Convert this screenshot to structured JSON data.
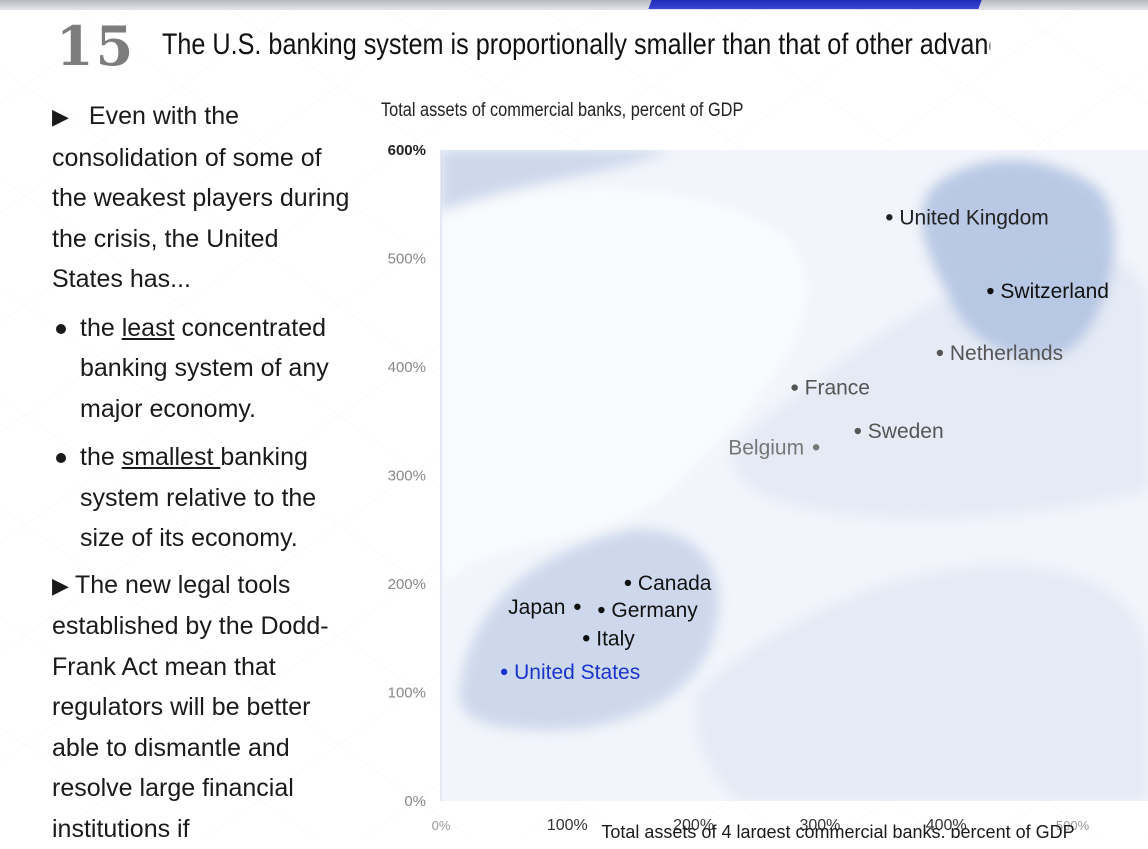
{
  "slide": {
    "number": "15",
    "title": "The U.S. banking system is proportionally smaller than that of other advanced eco"
  },
  "left_panel": {
    "intro": "Even with the consolidation of some of the weakest players during the crisis, the United States has...",
    "bullet1": {
      "prefix": "the ",
      "emph": "least",
      "suffix": " concentrated banking system of any major economy."
    },
    "bullet2": {
      "prefix": "the ",
      "emph": "smallest ",
      "suffix": "banking system relative to the size of its economy."
    },
    "para2": "The new legal tools established by the Dodd-Frank Act mean that regulators will be better able to dismantle and resolve large financial institutions if"
  },
  "chart_data": {
    "type": "scatter",
    "title": "Total assets of commercial banks, percent of GDP",
    "xlabel": "Total assets of 4 largest commercial banks, percent of GDP",
    "ylabel": "Total assets of commercial banks, percent of GDP",
    "xlim": [
      0,
      525
    ],
    "ylim": [
      0,
      600
    ],
    "x_ticks": [
      "0%",
      "100%",
      "200%",
      "300%",
      "400%",
      "500%"
    ],
    "y_ticks": [
      "0%",
      "100%",
      "200%",
      "300%",
      "400%",
      "500%",
      "600%"
    ],
    "grid": false,
    "points": [
      {
        "label": "United Kingdom",
        "x": 355,
        "y": 538,
        "color": "#222222"
      },
      {
        "label": "Switzerland",
        "x": 435,
        "y": 470,
        "color": "#111111"
      },
      {
        "label": "Netherlands",
        "x": 395,
        "y": 413,
        "color": "#555555"
      },
      {
        "label": "France",
        "x": 280,
        "y": 381,
        "color": "#555555"
      },
      {
        "label": "Sweden",
        "x": 330,
        "y": 341,
        "color": "#555555"
      },
      {
        "label": "Belgium",
        "x": 297,
        "y": 326,
        "color": "#777777"
      },
      {
        "label": "Canada",
        "x": 148,
        "y": 201,
        "color": "#111111"
      },
      {
        "label": "Japan",
        "x": 108,
        "y": 179,
        "color": "#111111"
      },
      {
        "label": "Germany",
        "x": 127,
        "y": 176,
        "color": "#111111"
      },
      {
        "label": "Italy",
        "x": 115,
        "y": 150,
        "color": "#111111"
      },
      {
        "label": "United States",
        "x": 50,
        "y": 119,
        "color": "#1a33cc"
      }
    ],
    "colors": {
      "background": "#f2f5fb",
      "band_light": "#e3e9f4",
      "band_mid": "#c9d5ea",
      "band_dark": "#b3c4e2",
      "axis_tick": "#888888"
    }
  }
}
